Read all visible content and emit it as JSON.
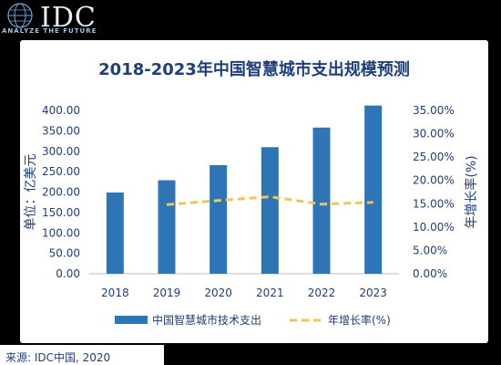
{
  "logo": {
    "name": "IDC",
    "tagline": "ANALYZE THE FUTURE"
  },
  "source": "来源: IDC中国, 2020",
  "chart_data": {
    "type": "bar",
    "title": "2018-2023年中国智慧城市支出规模预测",
    "ylabel": "单位：亿美元",
    "y2label": "年增长率(%)",
    "categories": [
      "2018",
      "2019",
      "2020",
      "2021",
      "2022",
      "2023"
    ],
    "ylim": [
      0,
      400
    ],
    "yticks": [
      "0.00",
      "50.00",
      "100.00",
      "150.00",
      "200.00",
      "250.00",
      "300.00",
      "350.00",
      "400.00"
    ],
    "y2lim": [
      0,
      35
    ],
    "y2ticks": [
      "0.00%",
      "5.00%",
      "10.00%",
      "15.00%",
      "20.00%",
      "25.00%",
      "30.00%",
      "35.00%"
    ],
    "legend_position": "bottom",
    "grid": false,
    "series": [
      {
        "name": "中国智慧城市技术支出",
        "type": "bar",
        "axis": "left",
        "color": "#2e75b6",
        "values": [
          199,
          229,
          266,
          310,
          358,
          412
        ]
      },
      {
        "name": "年增长率(%)",
        "type": "line",
        "axis": "right",
        "style": "dashed",
        "color": "#f0c654",
        "values": [
          null,
          14.8,
          15.7,
          16.5,
          14.9,
          15.3
        ]
      }
    ]
  }
}
